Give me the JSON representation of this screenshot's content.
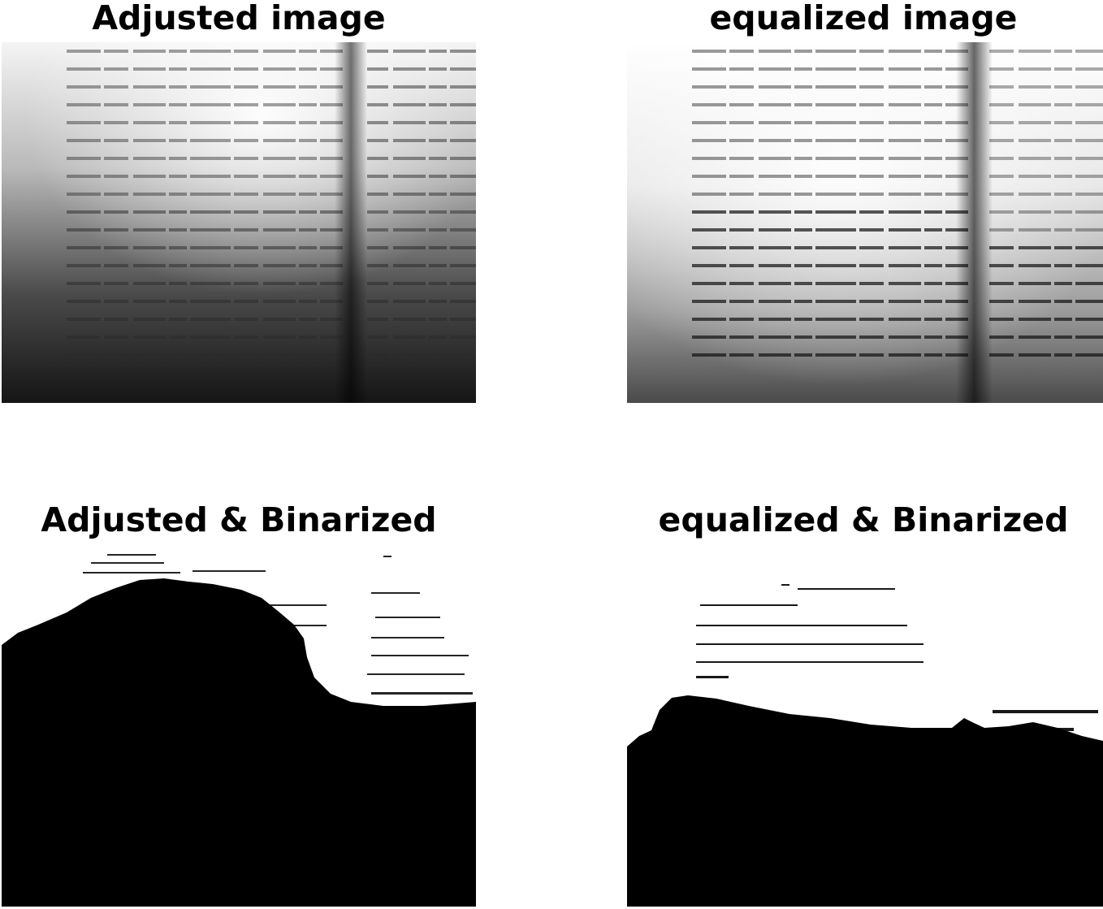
{
  "panels": [
    {
      "title": "Adjusted image",
      "image": "book-photo-adjusted",
      "colors": {
        "light": "#f2f2f2",
        "mid": "#8a8a8a",
        "dark": "#1a1a1a",
        "ink": "#333333"
      }
    },
    {
      "title": "equalized image",
      "image": "book-photo-equalized",
      "colors": {
        "light": "#ffffff",
        "mid": "#b5b5b5",
        "dark": "#3a3a3a",
        "ink": "#222222"
      }
    },
    {
      "title": "Adjusted & Binarized",
      "image": "book-photo-adjusted-binarized",
      "colors": {
        "white": "#ffffff",
        "black": "#000000"
      }
    },
    {
      "title": "equalized & Binarized",
      "image": "book-photo-equalized-binarized",
      "colors": {
        "white": "#ffffff",
        "black": "#000000"
      }
    }
  ]
}
